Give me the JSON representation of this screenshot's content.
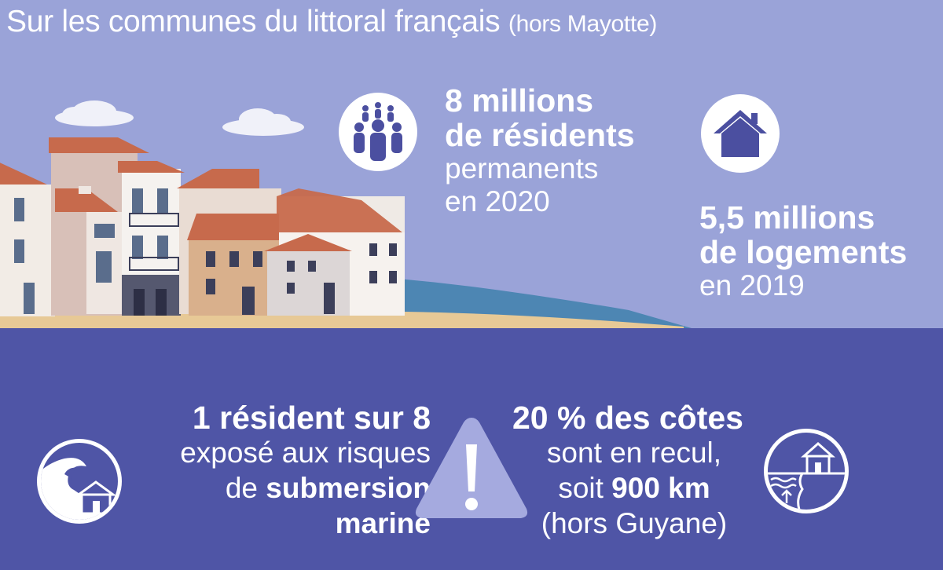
{
  "title": {
    "main": "Sur les communes du littoral français",
    "paren": "(hors Mayotte)"
  },
  "residents": {
    "icon": "people-group-icon",
    "line1": "8 millions",
    "line2": "de résidents",
    "line3": "permanents",
    "line4": "en 2020"
  },
  "housing": {
    "icon": "house-icon",
    "line1": "5,5 millions",
    "line2": "de logements",
    "line3": "en 2019"
  },
  "submersion": {
    "icon": "wave-house-icon",
    "line1": "1 résident sur 8",
    "line2": "exposé aux risques",
    "line3_prefix": "de ",
    "line3_bold": "submersion",
    "line4": "marine"
  },
  "warning": {
    "icon": "warning-triangle-icon"
  },
  "erosion": {
    "icon": "coast-erosion-icon",
    "line1": "20 % des côtes",
    "line2": "sont en recul,",
    "line3_prefix": "soit ",
    "line3_bold": "900 km",
    "line4": "(hors Guyane)"
  },
  "colors": {
    "sky": "#9aa3d8",
    "navy": "#4f55a6",
    "icon_fill": "#4b4fa0",
    "white": "#ffffff"
  }
}
